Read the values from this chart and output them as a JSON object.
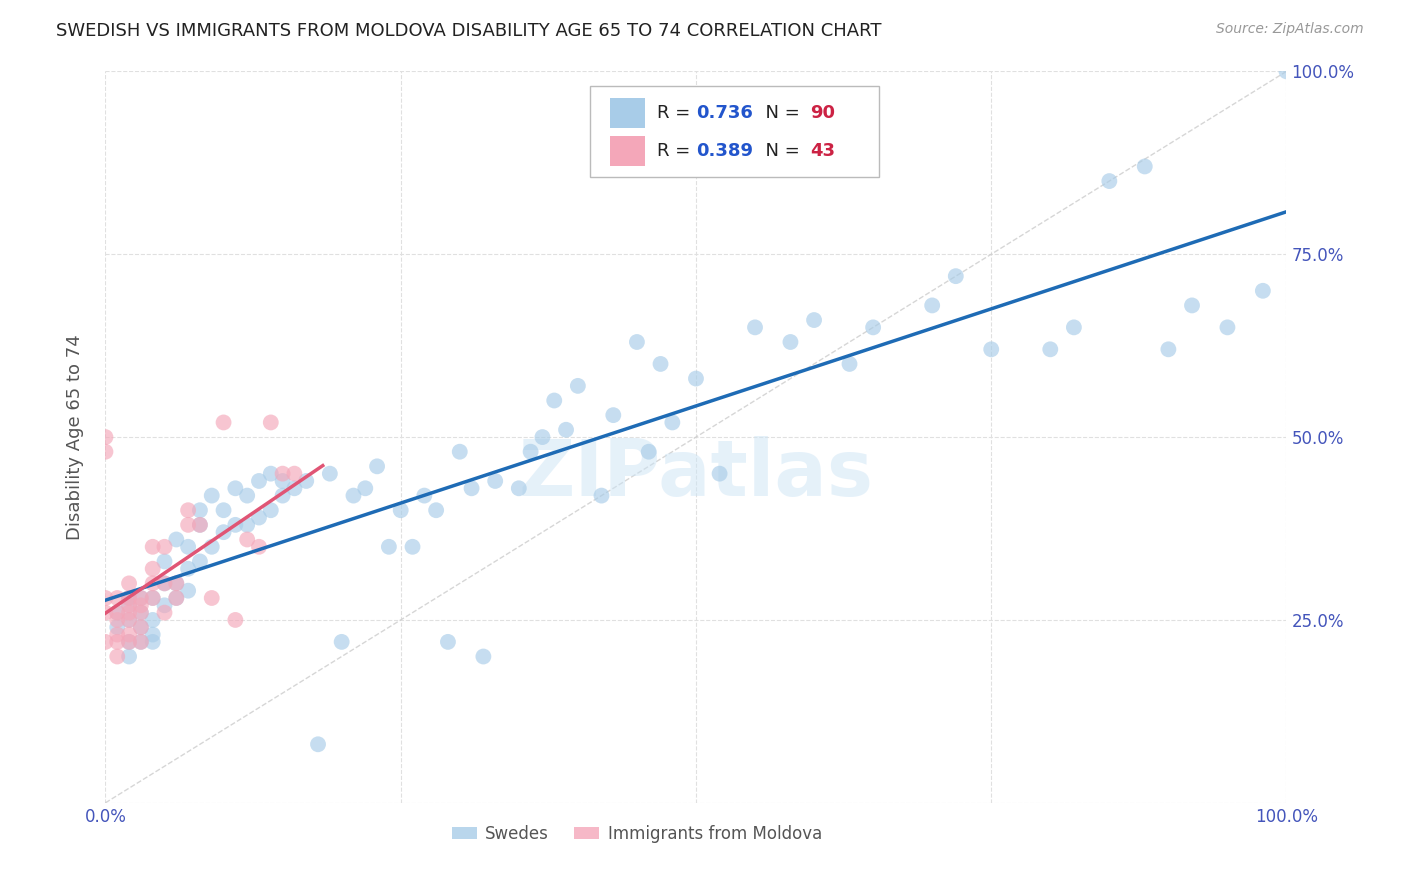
{
  "title": "SWEDISH VS IMMIGRANTS FROM MOLDOVA DISABILITY AGE 65 TO 74 CORRELATION CHART",
  "source": "Source: ZipAtlas.com",
  "ylabel": "Disability Age 65 to 74",
  "xlim": [
    0,
    1
  ],
  "ylim": [
    0,
    1
  ],
  "blue_R": 0.736,
  "blue_N": 90,
  "pink_R": 0.389,
  "pink_N": 43,
  "blue_color": "#a8cce8",
  "pink_color": "#f4a7b9",
  "blue_line_color": "#1e6bb5",
  "pink_line_color": "#e05575",
  "watermark": "ZIPatlas",
  "legend_label_blue": "Swedes",
  "legend_label_pink": "Immigrants from Moldova",
  "blue_scatter_x": [
    0.01,
    0.01,
    0.02,
    0.02,
    0.02,
    0.02,
    0.02,
    0.03,
    0.03,
    0.03,
    0.03,
    0.04,
    0.04,
    0.04,
    0.04,
    0.05,
    0.05,
    0.05,
    0.06,
    0.06,
    0.06,
    0.07,
    0.07,
    0.07,
    0.08,
    0.08,
    0.08,
    0.09,
    0.09,
    0.1,
    0.1,
    0.11,
    0.11,
    0.12,
    0.12,
    0.13,
    0.13,
    0.14,
    0.14,
    0.15,
    0.15,
    0.16,
    0.17,
    0.18,
    0.19,
    0.2,
    0.21,
    0.22,
    0.23,
    0.24,
    0.25,
    0.26,
    0.27,
    0.28,
    0.29,
    0.3,
    0.31,
    0.32,
    0.33,
    0.35,
    0.36,
    0.37,
    0.38,
    0.39,
    0.4,
    0.42,
    0.43,
    0.45,
    0.46,
    0.47,
    0.48,
    0.5,
    0.52,
    0.55,
    0.58,
    0.6,
    0.63,
    0.65,
    0.7,
    0.72,
    0.75,
    0.8,
    0.82,
    0.85,
    0.88,
    0.9,
    0.92,
    0.95,
    0.98,
    1.0
  ],
  "blue_scatter_y": [
    0.26,
    0.24,
    0.25,
    0.22,
    0.27,
    0.2,
    0.28,
    0.24,
    0.26,
    0.22,
    0.28,
    0.23,
    0.28,
    0.25,
    0.22,
    0.3,
    0.27,
    0.33,
    0.3,
    0.36,
    0.28,
    0.32,
    0.35,
    0.29,
    0.38,
    0.33,
    0.4,
    0.35,
    0.42,
    0.37,
    0.4,
    0.43,
    0.38,
    0.42,
    0.38,
    0.44,
    0.39,
    0.4,
    0.45,
    0.44,
    0.42,
    0.43,
    0.44,
    0.08,
    0.45,
    0.22,
    0.42,
    0.43,
    0.46,
    0.35,
    0.4,
    0.35,
    0.42,
    0.4,
    0.22,
    0.48,
    0.43,
    0.2,
    0.44,
    0.43,
    0.48,
    0.5,
    0.55,
    0.51,
    0.57,
    0.42,
    0.53,
    0.63,
    0.48,
    0.6,
    0.52,
    0.58,
    0.45,
    0.65,
    0.63,
    0.66,
    0.6,
    0.65,
    0.68,
    0.72,
    0.62,
    0.62,
    0.65,
    0.85,
    0.87,
    0.62,
    0.68,
    0.65,
    0.7,
    1.0
  ],
  "pink_scatter_x": [
    0.0,
    0.0,
    0.0,
    0.0,
    0.0,
    0.01,
    0.01,
    0.01,
    0.01,
    0.01,
    0.01,
    0.02,
    0.02,
    0.02,
    0.02,
    0.02,
    0.02,
    0.02,
    0.03,
    0.03,
    0.03,
    0.03,
    0.03,
    0.04,
    0.04,
    0.04,
    0.04,
    0.05,
    0.05,
    0.05,
    0.06,
    0.06,
    0.07,
    0.07,
    0.08,
    0.09,
    0.1,
    0.11,
    0.12,
    0.13,
    0.14,
    0.15,
    0.16
  ],
  "pink_scatter_y": [
    0.5,
    0.48,
    0.22,
    0.28,
    0.26,
    0.28,
    0.25,
    0.22,
    0.26,
    0.23,
    0.2,
    0.27,
    0.25,
    0.28,
    0.23,
    0.3,
    0.26,
    0.22,
    0.27,
    0.26,
    0.28,
    0.22,
    0.24,
    0.35,
    0.32,
    0.3,
    0.28,
    0.3,
    0.35,
    0.26,
    0.3,
    0.28,
    0.4,
    0.38,
    0.38,
    0.28,
    0.52,
    0.25,
    0.36,
    0.35,
    0.52,
    0.45,
    0.45
  ],
  "background_color": "#ffffff",
  "grid_color": "#e0e0e0",
  "title_color": "#222222",
  "title_fontsize": 13,
  "axis_label_color": "#555555",
  "tick_color": "#4455bb"
}
